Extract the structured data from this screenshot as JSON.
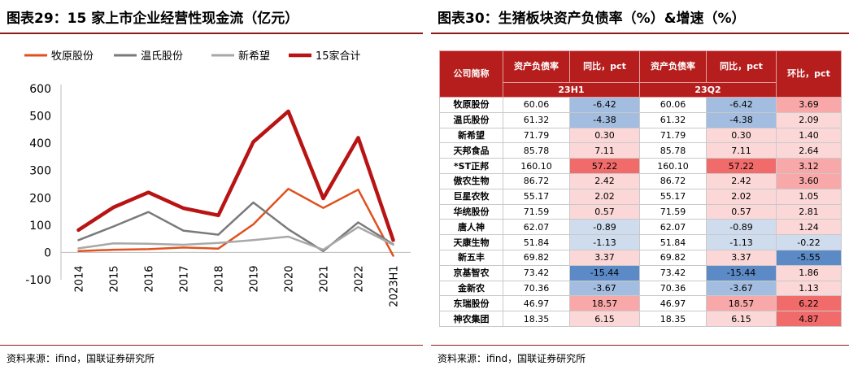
{
  "left": {
    "title": "图表29：15 家上市企业经营性现金流（亿元）",
    "source": "资料来源：ifind，国联证券研究所",
    "chart_data": {
      "type": "line",
      "title": "15 家上市企业经营性现金流（亿元）",
      "xlabel": "",
      "ylabel": "亿元",
      "ylim": [
        -100,
        600
      ],
      "yticks": [
        -100,
        0,
        100,
        200,
        300,
        400,
        500,
        600
      ],
      "ytick_labels": [
        "-100",
        "0",
        "100",
        "200",
        "300",
        "400",
        "500",
        "600"
      ],
      "legend_position": "top",
      "categories": [
        "2014",
        "2015",
        "2016",
        "2017",
        "2018",
        "2019",
        "2020",
        "2021",
        "2022",
        "2023H1"
      ],
      "series": [
        {
          "name": "牧原股份",
          "color": "#e0511e",
          "values": [
            5,
            10,
            12,
            18,
            14,
            103,
            233,
            163,
            230,
            -12
          ]
        },
        {
          "name": "温氏股份",
          "color": "#7a7a7a",
          "values": [
            45,
            95,
            148,
            80,
            65,
            183,
            85,
            5,
            110,
            30
          ]
        },
        {
          "name": "新希望",
          "color": "#a8a8a8",
          "values": [
            15,
            33,
            32,
            28,
            35,
            45,
            58,
            10,
            93,
            28
          ]
        },
        {
          "name": "15家合计",
          "color": "#b81414",
          "values": [
            82,
            165,
            220,
            162,
            136,
            405,
            517,
            198,
            420,
            45
          ]
        }
      ]
    }
  },
  "right": {
    "title": "图表30：生猪板块资产负债率（%）&增速（%）",
    "source": "资料来源：ifind，国联证券研究所",
    "header": {
      "company": "公司简称",
      "ratio_a": "资产负债率",
      "yoy_a": "同比，pct",
      "ratio_b": "资产负债率",
      "yoy_b": "同比，pct",
      "qoq": "环比，pct",
      "period_a": "23H1",
      "period_b": "23Q2"
    },
    "colors": {
      "header_bg": "#b61e1e",
      "pos_strong": "#f26b6b",
      "pos_mid": "#f8a8a8",
      "pos_light": "#fbd7d7",
      "neg_strong": "#5b8ac6",
      "neg_mid": "#a3bde0",
      "neg_light": "#cfdcee",
      "neutral": "#f3f6fb"
    },
    "rows": [
      {
        "name": "牧原股份",
        "ratio_a": "60.06",
        "yoy_a": "-6.42",
        "ratio_b": "60.06",
        "yoy_b": "-6.42",
        "qoq": "3.69"
      },
      {
        "name": "温氏股份",
        "ratio_a": "61.32",
        "yoy_a": "-4.38",
        "ratio_b": "61.32",
        "yoy_b": "-4.38",
        "qoq": "2.09"
      },
      {
        "name": "新希望",
        "ratio_a": "71.79",
        "yoy_a": "0.30",
        "ratio_b": "71.79",
        "yoy_b": "0.30",
        "qoq": "1.40"
      },
      {
        "name": "天邦食品",
        "ratio_a": "85.78",
        "yoy_a": "7.11",
        "ratio_b": "85.78",
        "yoy_b": "7.11",
        "qoq": "2.64"
      },
      {
        "name": "*ST正邦",
        "ratio_a": "160.10",
        "yoy_a": "57.22",
        "ratio_b": "160.10",
        "yoy_b": "57.22",
        "qoq": "3.12"
      },
      {
        "name": "傲农生物",
        "ratio_a": "86.72",
        "yoy_a": "2.42",
        "ratio_b": "86.72",
        "yoy_b": "2.42",
        "qoq": "3.60"
      },
      {
        "name": "巨星农牧",
        "ratio_a": "55.17",
        "yoy_a": "2.02",
        "ratio_b": "55.17",
        "yoy_b": "2.02",
        "qoq": "1.05"
      },
      {
        "name": "华统股份",
        "ratio_a": "71.59",
        "yoy_a": "0.57",
        "ratio_b": "71.59",
        "yoy_b": "0.57",
        "qoq": "2.81"
      },
      {
        "name": "唐人神",
        "ratio_a": "62.07",
        "yoy_a": "-0.89",
        "ratio_b": "62.07",
        "yoy_b": "-0.89",
        "qoq": "1.24"
      },
      {
        "name": "天康生物",
        "ratio_a": "51.84",
        "yoy_a": "-1.13",
        "ratio_b": "51.84",
        "yoy_b": "-1.13",
        "qoq": "-0.22"
      },
      {
        "name": "新五丰",
        "ratio_a": "69.82",
        "yoy_a": "3.37",
        "ratio_b": "69.82",
        "yoy_b": "3.37",
        "qoq": "-5.55"
      },
      {
        "name": "京基智农",
        "ratio_a": "73.42",
        "yoy_a": "-15.44",
        "ratio_b": "73.42",
        "yoy_b": "-15.44",
        "qoq": "1.86"
      },
      {
        "name": "金新农",
        "ratio_a": "70.36",
        "yoy_a": "-3.67",
        "ratio_b": "70.36",
        "yoy_b": "-3.67",
        "qoq": "1.13"
      },
      {
        "name": "东瑞股份",
        "ratio_a": "46.97",
        "yoy_a": "18.57",
        "ratio_b": "46.97",
        "yoy_b": "18.57",
        "qoq": "6.22"
      },
      {
        "name": "神农集团",
        "ratio_a": "18.35",
        "yoy_a": "6.15",
        "ratio_b": "18.35",
        "yoy_b": "6.15",
        "qoq": "4.87"
      }
    ]
  }
}
